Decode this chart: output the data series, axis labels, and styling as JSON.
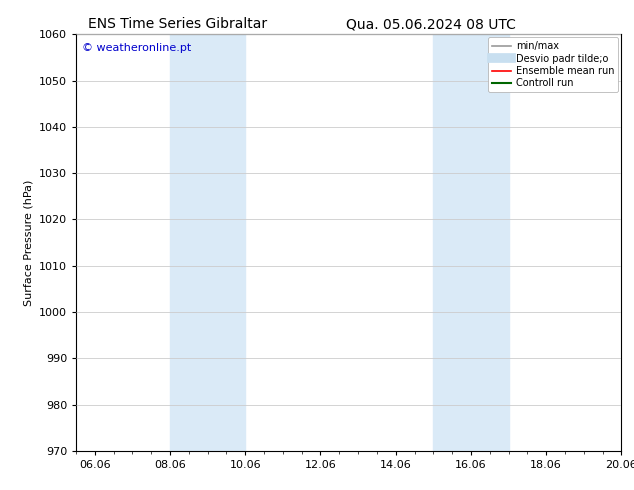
{
  "title_left": "ENS Time Series Gibraltar",
  "title_right": "Qua. 05.06.2024 08 UTC",
  "ylabel": "Surface Pressure (hPa)",
  "ylim": [
    970,
    1060
  ],
  "yticks": [
    970,
    980,
    990,
    1000,
    1010,
    1020,
    1030,
    1040,
    1050,
    1060
  ],
  "xlim": [
    0,
    14.5
  ],
  "xtick_labels": [
    "06.06",
    "08.06",
    "10.06",
    "12.06",
    "14.06",
    "16.06",
    "18.06",
    "20.06"
  ],
  "xtick_positions": [
    0.5,
    2.5,
    4.5,
    6.5,
    8.5,
    10.5,
    12.5,
    14.5
  ],
  "shaded_bands": [
    {
      "x_start": 2.5,
      "x_end": 4.5,
      "color": "#daeaf7"
    },
    {
      "x_start": 9.5,
      "x_end": 11.5,
      "color": "#daeaf7"
    }
  ],
  "watermark": "© weatheronline.pt",
  "watermark_color": "#0000cc",
  "legend_entries": [
    {
      "label": "min/max",
      "color": "#999999",
      "lw": 1.2
    },
    {
      "label": "Desvio padr tilde;o",
      "color": "#c8dff0",
      "lw": 7
    },
    {
      "label": "Ensemble mean run",
      "color": "#ff0000",
      "lw": 1.2
    },
    {
      "label": "Controll run",
      "color": "#006600",
      "lw": 1.5
    }
  ],
  "background_color": "#ffffff",
  "grid_color": "#cccccc",
  "figure_width": 6.34,
  "figure_height": 4.9,
  "dpi": 100,
  "font_size_title": 10,
  "font_size_axis": 8,
  "font_size_tick": 8,
  "font_size_legend": 7,
  "font_size_watermark": 8
}
